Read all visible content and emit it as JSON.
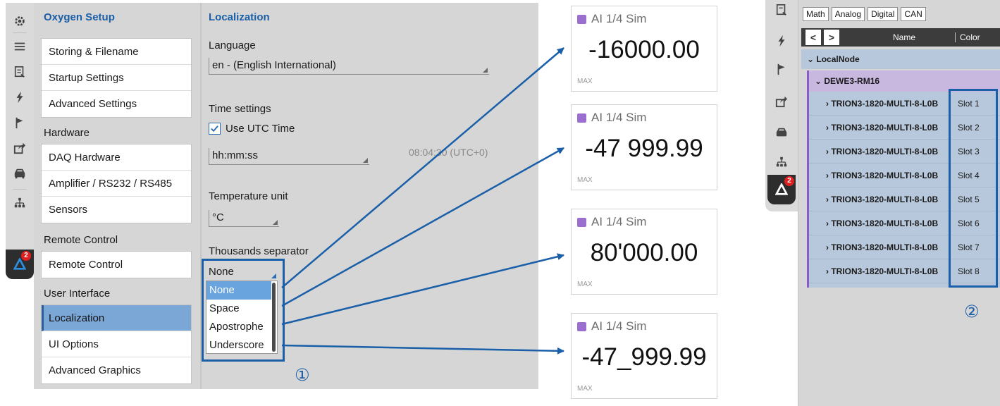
{
  "rail": {
    "icons": [
      "gear-icon",
      "list-icon",
      "report-icon",
      "bolt-icon",
      "flag-icon",
      "share-icon",
      "car-icon",
      "network-icon",
      "dewesoft-icon"
    ],
    "badge": "2"
  },
  "setup": {
    "title": "Oxygen Setup",
    "group1": [
      "Storing & Filename",
      "Startup Settings",
      "Advanced Settings"
    ],
    "hardware_label": "Hardware",
    "group2": [
      "DAQ Hardware",
      "Amplifier / RS232 / RS485",
      "Sensors"
    ],
    "remote_label": "Remote Control",
    "group3": [
      "Remote Control"
    ],
    "ui_label": "User Interface",
    "group4": [
      "Localization",
      "UI Options",
      "Advanced Graphics"
    ]
  },
  "localization": {
    "title": "Localization",
    "language_label": "Language",
    "language_value": "en - (English International)",
    "time_label": "Time settings",
    "utc_label": "Use UTC Time",
    "utc_checked": true,
    "time_format": "hh:mm:ss",
    "time_readout": "08:04:30 (UTC+0)",
    "temp_label": "Temperature unit",
    "temp_value": "°C",
    "sep_label": "Thousands separator",
    "sep_value": "None",
    "sep_options": [
      "None",
      "Space",
      "Apostrophe",
      "Underscore"
    ],
    "marker": "①"
  },
  "cards": [
    {
      "title": "AI 1/4 Sim",
      "value": "-16000.00",
      "foot": "MAX"
    },
    {
      "title": "AI 1/4 Sim",
      "value": "-47 999.99",
      "foot": "MAX"
    },
    {
      "title": "AI 1/4 Sim",
      "value": "80'000.00",
      "foot": "MAX"
    },
    {
      "title": "AI 1/4 Sim",
      "value": "-47_999.99",
      "foot": "MAX"
    }
  ],
  "colors": {
    "accent": "#1a5fa8",
    "swatch": "#9b6fd0",
    "selected": "#7aa7d6"
  },
  "tree": {
    "filters": [
      "Math",
      "Analog",
      "Digital",
      "CAN"
    ],
    "prev": "<",
    "next": ">",
    "col_name": "Name",
    "col_color": "Color",
    "root": "LocalNode",
    "device": "DEWE3-RM16",
    "rows": [
      {
        "name": "TRION3-1820-MULTI-8-L0B",
        "slot": "Slot 1"
      },
      {
        "name": "TRION3-1820-MULTI-8-L0B",
        "slot": "Slot 2"
      },
      {
        "name": "TRION3-1820-MULTI-8-L0B",
        "slot": "Slot 3"
      },
      {
        "name": "TRION3-1820-MULTI-8-L0B",
        "slot": "Slot 4"
      },
      {
        "name": "TRION3-1820-MULTI-8-L0B",
        "slot": "Slot 5"
      },
      {
        "name": "TRION3-1820-MULTI-8-L0B",
        "slot": "Slot 6"
      },
      {
        "name": "TRION3-1820-MULTI-8-L0B",
        "slot": "Slot 7"
      },
      {
        "name": "TRION3-1820-MULTI-8-L0B",
        "slot": "Slot 8"
      }
    ],
    "marker": "②"
  }
}
